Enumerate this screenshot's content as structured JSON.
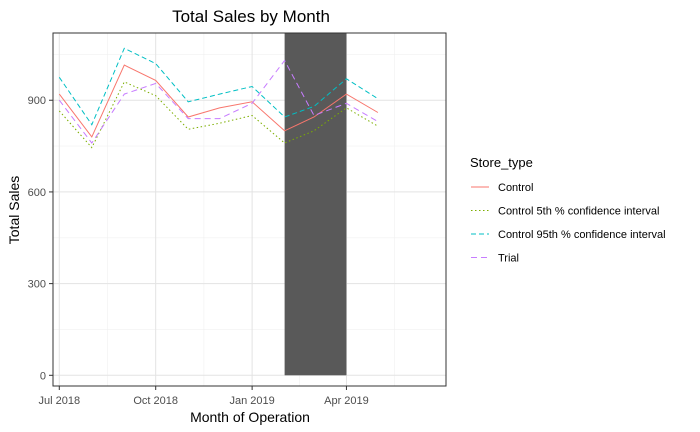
{
  "chart_data": {
    "type": "line",
    "title": "Total Sales by Month",
    "xlabel": "Month of Operation",
    "ylabel": "Total Sales",
    "x": [
      "2018-07",
      "2018-08",
      "2018-09",
      "2018-10",
      "2018-11",
      "2018-12",
      "2019-01",
      "2019-02",
      "2019-03",
      "2019-04",
      "2019-05",
      "2019-06"
    ],
    "xlim": [
      "2018-06-25",
      "2019-07-05"
    ],
    "x_ticks": [
      {
        "date": "2018-07-01",
        "label": "Jul 2018"
      },
      {
        "date": "2018-10-01",
        "label": "Oct 2018"
      },
      {
        "date": "2019-01-01",
        "label": "Jan 2019"
      },
      {
        "date": "2019-04-01",
        "label": "Apr 2019"
      }
    ],
    "ylim": [
      -35,
      1120
    ],
    "y_ticks": [
      0,
      300,
      600,
      900
    ],
    "grid": true,
    "legend": {
      "title": "Store_type",
      "position": "right"
    },
    "highlight_band": {
      "from": "2019-02-01",
      "to": "2019-04-01",
      "y_from": 0,
      "y_to": 1120,
      "color": "#595959"
    },
    "series": [
      {
        "name": "Control",
        "color": "#F8766D",
        "dash": "",
        "values": [
          920,
          780,
          1015,
          965,
          845,
          875,
          895,
          800,
          845,
          920,
          860,
          null
        ]
      },
      {
        "name": "Control 5th % confidence interval",
        "color": "#7CAE00",
        "dash": "1.5,2.5",
        "values": [
          865,
          745,
          960,
          915,
          805,
          825,
          850,
          760,
          800,
          875,
          815,
          null
        ]
      },
      {
        "name": "Control 95th % confidence interval",
        "color": "#00BFC4",
        "dash": "5,3",
        "values": [
          975,
          820,
          1070,
          1020,
          895,
          920,
          945,
          845,
          880,
          970,
          905,
          null
        ]
      },
      {
        "name": "Trial",
        "color": "#C77CFF",
        "dash": "6,4",
        "values": [
          900,
          760,
          920,
          955,
          840,
          840,
          890,
          1030,
          850,
          890,
          830,
          null
        ]
      }
    ]
  }
}
